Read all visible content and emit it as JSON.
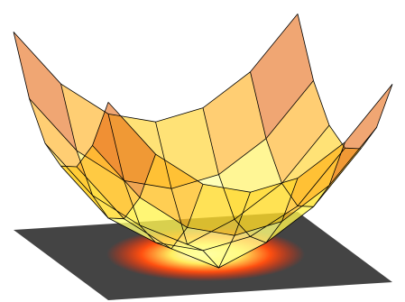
{
  "chart_data": {
    "type": "surface",
    "x": [
      -3,
      -2,
      -1,
      0,
      1,
      2,
      3
    ],
    "y": [
      -3,
      -2,
      -1,
      0,
      1,
      2,
      3
    ],
    "z": [
      [
        18,
        13,
        10,
        9,
        10,
        13,
        18
      ],
      [
        13,
        8,
        5,
        4,
        5,
        8,
        13
      ],
      [
        10,
        5,
        2,
        1.5,
        2,
        5,
        10
      ],
      [
        9,
        4,
        0,
        0.5,
        0,
        4,
        9
      ],
      [
        10,
        5,
        2,
        1.5,
        2,
        5,
        10
      ],
      [
        13,
        8,
        5,
        4,
        5,
        8,
        13
      ],
      [
        18,
        13,
        10,
        9,
        10,
        13,
        18
      ]
    ],
    "colormap": "hot",
    "mesh_color": "#000000",
    "floor_color": "#444444"
  }
}
